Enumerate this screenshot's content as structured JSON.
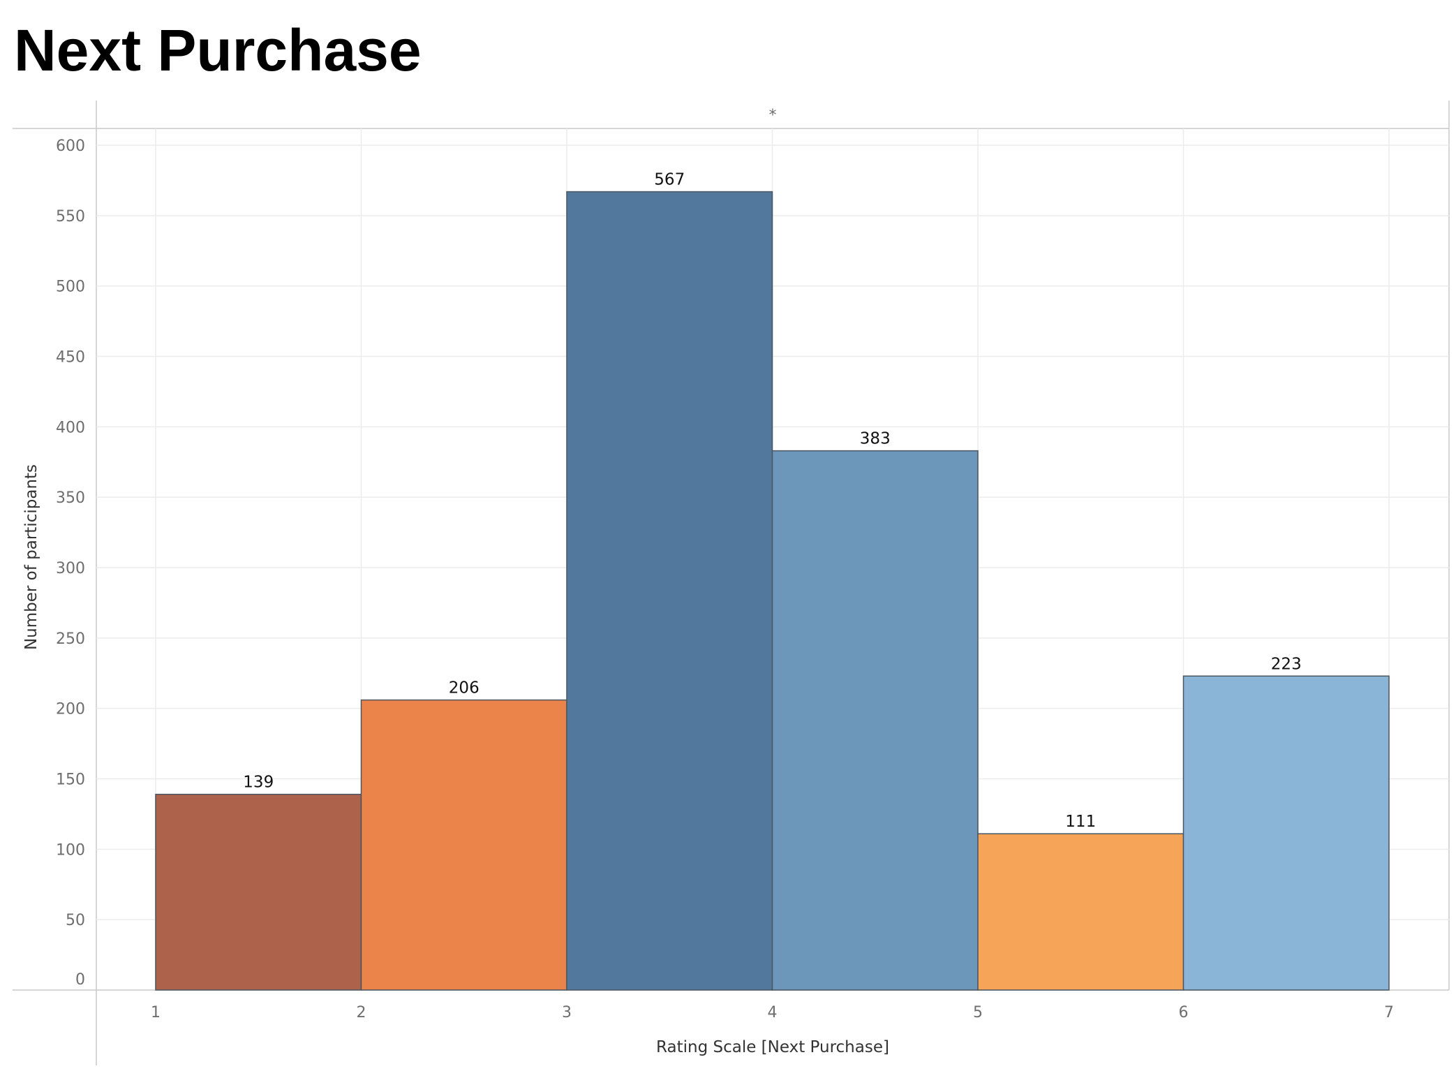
{
  "title": "Next Purchase",
  "header_mark": "*",
  "chart_data": {
    "type": "bar",
    "title": "Next Purchase",
    "xlabel": "Rating Scale  [Next Purchase]",
    "ylabel": "Number of participants",
    "x_ticks": [
      "1",
      "2",
      "3",
      "4",
      "5",
      "6",
      "7"
    ],
    "y_ticks": [
      0,
      50,
      100,
      150,
      200,
      250,
      300,
      350,
      400,
      450,
      500,
      550,
      600
    ],
    "ylim": [
      0,
      600
    ],
    "xlim": [
      1,
      7
    ],
    "grid": true,
    "bins": [
      {
        "start": 1,
        "end": 2,
        "value": 139,
        "color": "#AD624B"
      },
      {
        "start": 2,
        "end": 3,
        "value": 206,
        "color": "#EA844A"
      },
      {
        "start": 3,
        "end": 4,
        "value": 567,
        "color": "#53789E"
      },
      {
        "start": 4,
        "end": 5,
        "value": 383,
        "color": "#6D96BB"
      },
      {
        "start": 5,
        "end": 6,
        "value": 111,
        "color": "#F6A457"
      },
      {
        "start": 6,
        "end": 7,
        "value": 223,
        "color": "#8BB5D6"
      }
    ]
  }
}
